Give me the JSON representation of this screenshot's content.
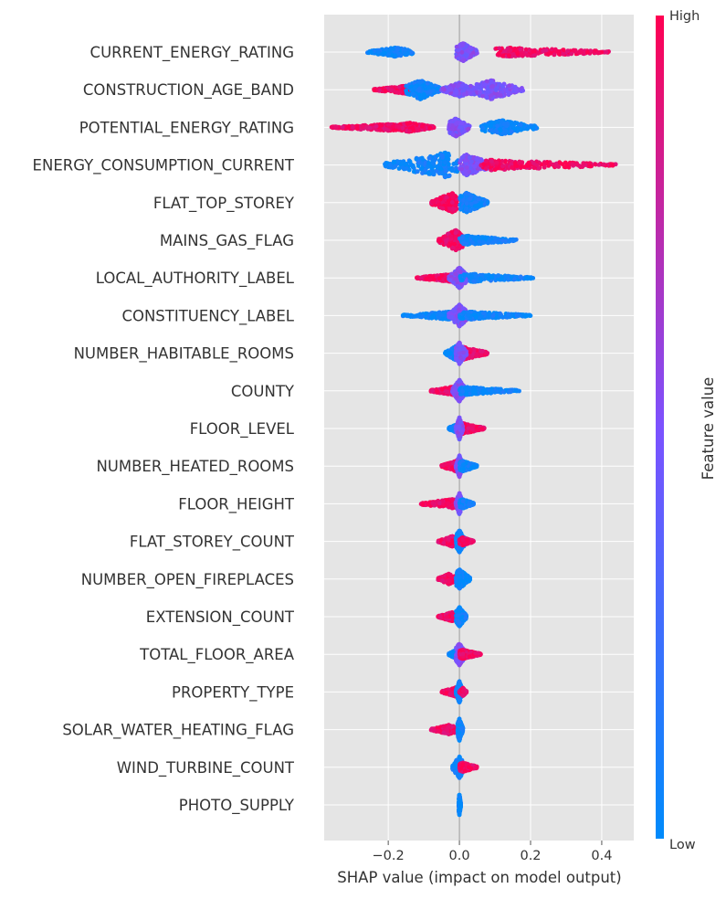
{
  "chart_data": {
    "type": "scatter",
    "subtype": "shap-beeswarm",
    "xlabel": "SHAP value (impact on model output)",
    "xlim": [
      -0.38,
      0.49
    ],
    "xticks": [
      -0.2,
      0.0,
      0.2,
      0.4
    ],
    "xtick_labels": [
      "−0.2",
      "0.0",
      "0.2",
      "0.4"
    ],
    "grid": true,
    "colorbar": {
      "title": "Feature value",
      "high_label": "High",
      "low_label": "Low",
      "low_color": "#008bfb",
      "mid_color": "#7c52ff",
      "high_color": "#ff0052"
    },
    "features": [
      {
        "name": "CURRENT_ENERGY_RATING",
        "min": -0.27,
        "max": 0.43,
        "segments": [
          {
            "from": -0.26,
            "to": -0.13,
            "center": -0.18,
            "color": "low",
            "spread": 0.35
          },
          {
            "from": -0.01,
            "to": 0.05,
            "center": 0.01,
            "color": "mid",
            "spread": 0.7
          },
          {
            "from": 0.1,
            "to": 0.42,
            "center": 0.14,
            "color": "high",
            "spread": 0.35
          }
        ]
      },
      {
        "name": "CONSTRUCTION_AGE_BAND",
        "min": -0.25,
        "max": 0.18,
        "segments": [
          {
            "from": -0.24,
            "to": -0.12,
            "center": -0.15,
            "color": "high",
            "spread": 0.3
          },
          {
            "from": -0.15,
            "to": -0.05,
            "center": -0.11,
            "color": "low",
            "spread": 0.75
          },
          {
            "from": -0.05,
            "to": 0.03,
            "center": 0.0,
            "color": "mid",
            "spread": 0.55
          },
          {
            "from": 0.03,
            "to": 0.18,
            "center": 0.09,
            "color": "mid",
            "spread": 0.75
          }
        ]
      },
      {
        "name": "POTENTIAL_ENERGY_RATING",
        "min": -0.36,
        "max": 0.23,
        "segments": [
          {
            "from": -0.36,
            "to": -0.17,
            "center": -0.2,
            "color": "high",
            "spread": 0.25
          },
          {
            "from": -0.17,
            "to": -0.07,
            "center": -0.14,
            "color": "high",
            "spread": 0.35
          },
          {
            "from": -0.03,
            "to": 0.03,
            "center": -0.01,
            "color": "mid",
            "spread": 0.7
          },
          {
            "from": 0.06,
            "to": 0.22,
            "center": 0.12,
            "color": "low",
            "spread": 0.55
          }
        ]
      },
      {
        "name": "ENERGY_CONSUMPTION_CURRENT",
        "min": -0.21,
        "max": 0.45,
        "segments": [
          {
            "from": -0.21,
            "to": 0.0,
            "center": -0.04,
            "color": "low",
            "spread": 0.95
          },
          {
            "from": 0.0,
            "to": 0.1,
            "center": 0.02,
            "color": "mid",
            "spread": 0.8
          },
          {
            "from": 0.06,
            "to": 0.44,
            "center": 0.09,
            "color": "high",
            "spread": 0.4
          }
        ]
      },
      {
        "name": "FLAT_TOP_STOREY",
        "min": -0.08,
        "max": 0.08,
        "segments": [
          {
            "from": -0.08,
            "to": -0.005,
            "center": -0.02,
            "color": "high",
            "spread": 0.75
          },
          {
            "from": 0.0,
            "to": 0.08,
            "center": 0.02,
            "color": "low",
            "spread": 0.75
          }
        ]
      },
      {
        "name": "MAINS_GAS_FLAG",
        "min": -0.07,
        "max": 0.16,
        "segments": [
          {
            "from": -0.06,
            "to": 0.01,
            "center": -0.01,
            "color": "high",
            "spread": 0.8
          },
          {
            "from": 0.0,
            "to": 0.16,
            "center": 0.02,
            "color": "low",
            "spread": 0.35
          }
        ]
      },
      {
        "name": "LOCAL_AUTHORITY_LABEL",
        "min": -0.12,
        "max": 0.21,
        "segments": [
          {
            "from": -0.12,
            "to": 0.0,
            "center": -0.02,
            "color": "high",
            "spread": 0.3
          },
          {
            "from": -0.03,
            "to": 0.03,
            "center": 0.0,
            "color": "mid",
            "spread": 0.8
          },
          {
            "from": 0.0,
            "to": 0.21,
            "center": 0.04,
            "color": "low",
            "spread": 0.3
          }
        ]
      },
      {
        "name": "CONSTITUENCY_LABEL",
        "min": -0.16,
        "max": 0.2,
        "segments": [
          {
            "from": -0.16,
            "to": 0.0,
            "center": -0.03,
            "color": "low",
            "spread": 0.3
          },
          {
            "from": -0.03,
            "to": 0.03,
            "center": 0.0,
            "color": "mid",
            "spread": 0.85
          },
          {
            "from": 0.0,
            "to": 0.2,
            "center": 0.03,
            "color": "low",
            "spread": 0.3
          }
        ]
      },
      {
        "name": "NUMBER_HABITABLE_ROOMS",
        "min": -0.04,
        "max": 0.08,
        "segments": [
          {
            "from": -0.04,
            "to": 0.0,
            "center": -0.01,
            "color": "low",
            "spread": 0.55
          },
          {
            "from": 0.0,
            "to": 0.08,
            "center": 0.01,
            "color": "high",
            "spread": 0.5
          },
          {
            "from": -0.01,
            "to": 0.02,
            "center": 0.0,
            "color": "mid",
            "spread": 0.85
          }
        ]
      },
      {
        "name": "COUNTY",
        "min": -0.08,
        "max": 0.17,
        "segments": [
          {
            "from": -0.08,
            "to": 0.0,
            "center": -0.01,
            "color": "high",
            "spread": 0.35
          },
          {
            "from": -0.02,
            "to": 0.02,
            "center": 0.0,
            "color": "mid",
            "spread": 0.85
          },
          {
            "from": 0.0,
            "to": 0.17,
            "center": 0.02,
            "color": "low",
            "spread": 0.3
          }
        ]
      },
      {
        "name": "FLOOR_LEVEL",
        "min": -0.03,
        "max": 0.07,
        "segments": [
          {
            "from": -0.03,
            "to": 0.0,
            "center": 0.0,
            "color": "low",
            "spread": 0.4
          },
          {
            "from": 0.0,
            "to": 0.07,
            "center": 0.01,
            "color": "high",
            "spread": 0.4
          },
          {
            "from": -0.01,
            "to": 0.01,
            "center": 0.0,
            "color": "mid",
            "spread": 0.85
          }
        ]
      },
      {
        "name": "NUMBER_HEATED_ROOMS",
        "min": -0.05,
        "max": 0.05,
        "segments": [
          {
            "from": -0.05,
            "to": 0.0,
            "center": -0.01,
            "color": "high",
            "spread": 0.4
          },
          {
            "from": -0.01,
            "to": 0.01,
            "center": 0.0,
            "color": "mid",
            "spread": 0.85
          },
          {
            "from": 0.0,
            "to": 0.05,
            "center": 0.01,
            "color": "low",
            "spread": 0.4
          }
        ]
      },
      {
        "name": "FLOOR_HEIGHT",
        "min": -0.11,
        "max": 0.04,
        "segments": [
          {
            "from": -0.11,
            "to": 0.0,
            "center": -0.02,
            "color": "high",
            "spread": 0.35
          },
          {
            "from": -0.01,
            "to": 0.01,
            "center": 0.0,
            "color": "mid",
            "spread": 0.85
          },
          {
            "from": 0.0,
            "to": 0.04,
            "center": 0.01,
            "color": "low",
            "spread": 0.35
          }
        ]
      },
      {
        "name": "FLAT_STOREY_COUNT",
        "min": -0.06,
        "max": 0.04,
        "segments": [
          {
            "from": -0.06,
            "to": 0.0,
            "center": -0.02,
            "color": "high",
            "spread": 0.4
          },
          {
            "from": -0.01,
            "to": 0.02,
            "center": 0.0,
            "color": "low",
            "spread": 0.85
          },
          {
            "from": 0.0,
            "to": 0.04,
            "center": 0.01,
            "color": "high",
            "spread": 0.3
          }
        ]
      },
      {
        "name": "NUMBER_OPEN_FIREPLACES",
        "min": -0.06,
        "max": 0.03,
        "segments": [
          {
            "from": -0.06,
            "to": 0.0,
            "center": -0.03,
            "color": "high",
            "spread": 0.4
          },
          {
            "from": -0.01,
            "to": 0.03,
            "center": 0.0,
            "color": "low",
            "spread": 0.75
          }
        ]
      },
      {
        "name": "EXTENSION_COUNT",
        "min": -0.06,
        "max": 0.02,
        "segments": [
          {
            "from": -0.06,
            "to": 0.0,
            "center": -0.02,
            "color": "high",
            "spread": 0.35
          },
          {
            "from": -0.01,
            "to": 0.02,
            "center": 0.0,
            "color": "low",
            "spread": 0.75
          }
        ]
      },
      {
        "name": "TOTAL_FLOOR_AREA",
        "min": -0.03,
        "max": 0.06,
        "segments": [
          {
            "from": -0.03,
            "to": 0.0,
            "center": -0.01,
            "color": "low",
            "spread": 0.35
          },
          {
            "from": -0.01,
            "to": 0.02,
            "center": 0.0,
            "color": "mid",
            "spread": 0.85
          },
          {
            "from": 0.0,
            "to": 0.06,
            "center": 0.01,
            "color": "high",
            "spread": 0.35
          }
        ]
      },
      {
        "name": "PROPERTY_TYPE",
        "min": -0.05,
        "max": 0.02,
        "segments": [
          {
            "from": -0.05,
            "to": 0.0,
            "center": -0.01,
            "color": "high",
            "spread": 0.35
          },
          {
            "from": -0.01,
            "to": 0.01,
            "center": 0.0,
            "color": "low",
            "spread": 0.85
          },
          {
            "from": 0.0,
            "to": 0.02,
            "center": 0.01,
            "color": "high",
            "spread": 0.3
          }
        ]
      },
      {
        "name": "SOLAR_WATER_HEATING_FLAG",
        "min": -0.08,
        "max": 0.01,
        "segments": [
          {
            "from": -0.08,
            "to": -0.005,
            "center": -0.03,
            "color": "high",
            "spread": 0.35
          },
          {
            "from": -0.005,
            "to": 0.01,
            "center": 0.0,
            "color": "low",
            "spread": 0.85
          }
        ]
      },
      {
        "name": "WIND_TURBINE_COUNT",
        "min": -0.02,
        "max": 0.05,
        "segments": [
          {
            "from": -0.02,
            "to": 0.01,
            "center": 0.0,
            "color": "low",
            "spread": 0.85
          },
          {
            "from": 0.0,
            "to": 0.05,
            "center": 0.01,
            "color": "high",
            "spread": 0.35
          }
        ]
      },
      {
        "name": "PHOTO_SUPPLY",
        "min": 0.0,
        "max": 0.01,
        "segments": [
          {
            "from": -0.002,
            "to": 0.004,
            "center": 0.0,
            "color": "low",
            "spread": 0.8
          }
        ]
      }
    ]
  }
}
